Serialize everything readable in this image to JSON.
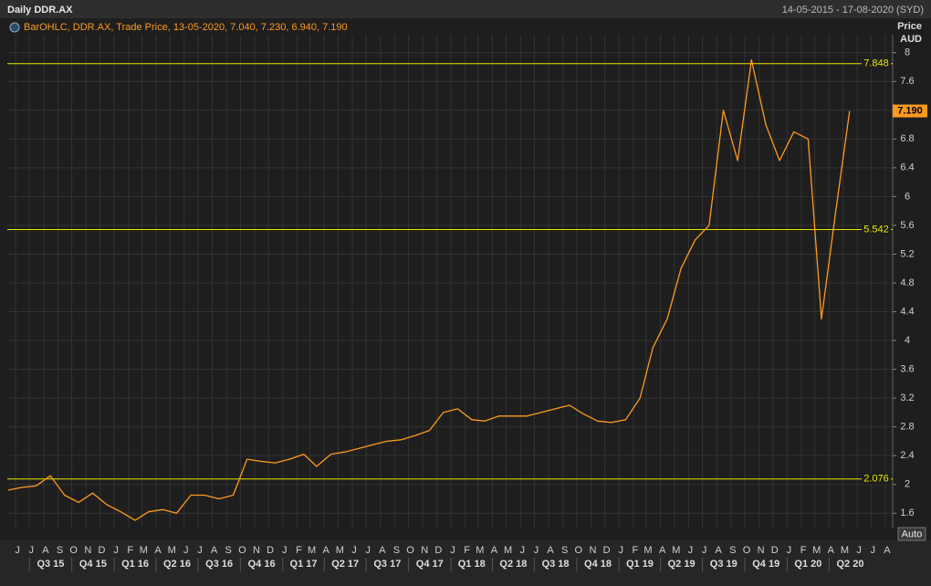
{
  "chart_data": {
    "type": "line",
    "title": "Daily DDR.AX",
    "date_range": "14-05-2015 - 17-08-2020 (SYD)",
    "legend": "BarOHLC, DDR.AX, Trade Price, 13-05-2020, 7.040, 7.230, 6.940, 7.190",
    "ylabel": [
      "Price",
      "AUD"
    ],
    "auto_button": "Auto",
    "xlim": [
      "2015-05-14",
      "2020-08-17"
    ],
    "ylim": [
      1.4,
      8.25
    ],
    "yticks": [
      8,
      7.6,
      7.2,
      6.8,
      6.4,
      6,
      5.6,
      5.2,
      4.8,
      4.4,
      4,
      3.6,
      3.2,
      2.8,
      2.4,
      2,
      1.6
    ],
    "xticks": [
      {
        "value": "2015-06",
        "label": "J"
      },
      {
        "value": "2015-07",
        "label": "J"
      },
      {
        "value": "2015-08",
        "label": "A"
      },
      {
        "value": "2015-09",
        "label": "S"
      },
      {
        "value": "2015-10",
        "label": "O"
      },
      {
        "value": "2015-11",
        "label": "N"
      },
      {
        "value": "2015-12",
        "label": "D"
      },
      {
        "value": "2016-01",
        "label": "J"
      },
      {
        "value": "2016-02",
        "label": "F"
      },
      {
        "value": "2016-03",
        "label": "M"
      },
      {
        "value": "2016-04",
        "label": "A"
      },
      {
        "value": "2016-05",
        "label": "M"
      },
      {
        "value": "2016-06",
        "label": "J"
      },
      {
        "value": "2016-07",
        "label": "J"
      },
      {
        "value": "2016-08",
        "label": "A"
      },
      {
        "value": "2016-09",
        "label": "S"
      },
      {
        "value": "2016-10",
        "label": "O"
      },
      {
        "value": "2016-11",
        "label": "N"
      },
      {
        "value": "2016-12",
        "label": "D"
      },
      {
        "value": "2017-01",
        "label": "J"
      },
      {
        "value": "2017-02",
        "label": "F"
      },
      {
        "value": "2017-03",
        "label": "M"
      },
      {
        "value": "2017-04",
        "label": "A"
      },
      {
        "value": "2017-05",
        "label": "M"
      },
      {
        "value": "2017-06",
        "label": "J"
      },
      {
        "value": "2017-07",
        "label": "J"
      },
      {
        "value": "2017-08",
        "label": "A"
      },
      {
        "value": "2017-09",
        "label": "S"
      },
      {
        "value": "2017-10",
        "label": "O"
      },
      {
        "value": "2017-11",
        "label": "N"
      },
      {
        "value": "2017-12",
        "label": "D"
      },
      {
        "value": "2018-01",
        "label": "J"
      },
      {
        "value": "2018-02",
        "label": "F"
      },
      {
        "value": "2018-03",
        "label": "M"
      },
      {
        "value": "2018-04",
        "label": "A"
      },
      {
        "value": "2018-05",
        "label": "M"
      },
      {
        "value": "2018-06",
        "label": "J"
      },
      {
        "value": "2018-07",
        "label": "J"
      },
      {
        "value": "2018-08",
        "label": "A"
      },
      {
        "value": "2018-09",
        "label": "S"
      },
      {
        "value": "2018-10",
        "label": "O"
      },
      {
        "value": "2018-11",
        "label": "N"
      },
      {
        "value": "2018-12",
        "label": "D"
      },
      {
        "value": "2019-01",
        "label": "J"
      },
      {
        "value": "2019-02",
        "label": "F"
      },
      {
        "value": "2019-03",
        "label": "M"
      },
      {
        "value": "2019-04",
        "label": "A"
      },
      {
        "value": "2019-05",
        "label": "M"
      },
      {
        "value": "2019-06",
        "label": "J"
      },
      {
        "value": "2019-07",
        "label": "J"
      },
      {
        "value": "2019-08",
        "label": "A"
      },
      {
        "value": "2019-09",
        "label": "S"
      },
      {
        "value": "2019-10",
        "label": "O"
      },
      {
        "value": "2019-11",
        "label": "N"
      },
      {
        "value": "2019-12",
        "label": "D"
      },
      {
        "value": "2020-01",
        "label": "J"
      },
      {
        "value": "2020-02",
        "label": "F"
      },
      {
        "value": "2020-03",
        "label": "M"
      },
      {
        "value": "2020-04",
        "label": "A"
      },
      {
        "value": "2020-05",
        "label": "M"
      },
      {
        "value": "2020-06",
        "label": "J"
      },
      {
        "value": "2020-07",
        "label": "J"
      },
      {
        "value": "2020-08",
        "label": "A"
      }
    ],
    "quarters": [
      {
        "value": "2015-07",
        "label": "Q3 15"
      },
      {
        "value": "2015-10",
        "label": "Q4 15"
      },
      {
        "value": "2016-01",
        "label": "Q1 16"
      },
      {
        "value": "2016-04",
        "label": "Q2 16"
      },
      {
        "value": "2016-07",
        "label": "Q3 16"
      },
      {
        "value": "2016-10",
        "label": "Q4 16"
      },
      {
        "value": "2017-01",
        "label": "Q1 17"
      },
      {
        "value": "2017-04",
        "label": "Q2 17"
      },
      {
        "value": "2017-07",
        "label": "Q3 17"
      },
      {
        "value": "2017-10",
        "label": "Q4 17"
      },
      {
        "value": "2018-01",
        "label": "Q1 18"
      },
      {
        "value": "2018-04",
        "label": "Q2 18"
      },
      {
        "value": "2018-07",
        "label": "Q3 18"
      },
      {
        "value": "2018-10",
        "label": "Q4 18"
      },
      {
        "value": "2019-01",
        "label": "Q1 19"
      },
      {
        "value": "2019-04",
        "label": "Q2 19"
      },
      {
        "value": "2019-07",
        "label": "Q3 19"
      },
      {
        "value": "2019-10",
        "label": "Q4 19"
      },
      {
        "value": "2020-01",
        "label": "Q1 20"
      },
      {
        "value": "2020-04",
        "label": "Q2 20"
      }
    ],
    "x": [
      "2015-05",
      "2015-06",
      "2015-07",
      "2015-08",
      "2015-09",
      "2015-10",
      "2015-11",
      "2015-12",
      "2016-01",
      "2016-02",
      "2016-03",
      "2016-04",
      "2016-05",
      "2016-06",
      "2016-07",
      "2016-08",
      "2016-09",
      "2016-10",
      "2016-11",
      "2016-12",
      "2017-01",
      "2017-02",
      "2017-03",
      "2017-04",
      "2017-05",
      "2017-06",
      "2017-07",
      "2017-08",
      "2017-09",
      "2017-10",
      "2017-11",
      "2017-12",
      "2018-01",
      "2018-02",
      "2018-03",
      "2018-04",
      "2018-05",
      "2018-06",
      "2018-07",
      "2018-08",
      "2018-09",
      "2018-10",
      "2018-11",
      "2018-12",
      "2019-01",
      "2019-02",
      "2019-03",
      "2019-04",
      "2019-05",
      "2019-06",
      "2019-07",
      "2019-08",
      "2019-09",
      "2019-10",
      "2019-11",
      "2019-12",
      "2020-01",
      "2020-02",
      "2020-03",
      "2020-04",
      "2020-05"
    ],
    "series": [
      {
        "name": "DDR.AX",
        "color": "#ff9a1f",
        "values": [
          1.92,
          1.96,
          1.98,
          2.12,
          1.85,
          1.75,
          1.88,
          1.72,
          1.62,
          1.5,
          1.62,
          1.65,
          1.6,
          1.85,
          1.85,
          1.8,
          1.85,
          2.35,
          2.32,
          2.3,
          2.35,
          2.42,
          2.25,
          2.42,
          2.45,
          2.5,
          2.55,
          2.6,
          2.62,
          2.68,
          2.75,
          3.0,
          3.05,
          2.9,
          2.88,
          2.95,
          2.95,
          2.95,
          3.0,
          3.05,
          3.1,
          2.98,
          2.88,
          2.86,
          2.9,
          3.2,
          3.9,
          4.3,
          5.0,
          5.4,
          5.6,
          7.2,
          6.5,
          7.9,
          7.0,
          6.5,
          6.9,
          6.8,
          4.3,
          5.8,
          7.19
        ]
      }
    ],
    "hlines": [
      7.848,
      5.542,
      2.076
    ],
    "hline_color": "#e6e600",
    "last_label": {
      "value": 7.19,
      "label": "7.190"
    },
    "grid": true
  }
}
